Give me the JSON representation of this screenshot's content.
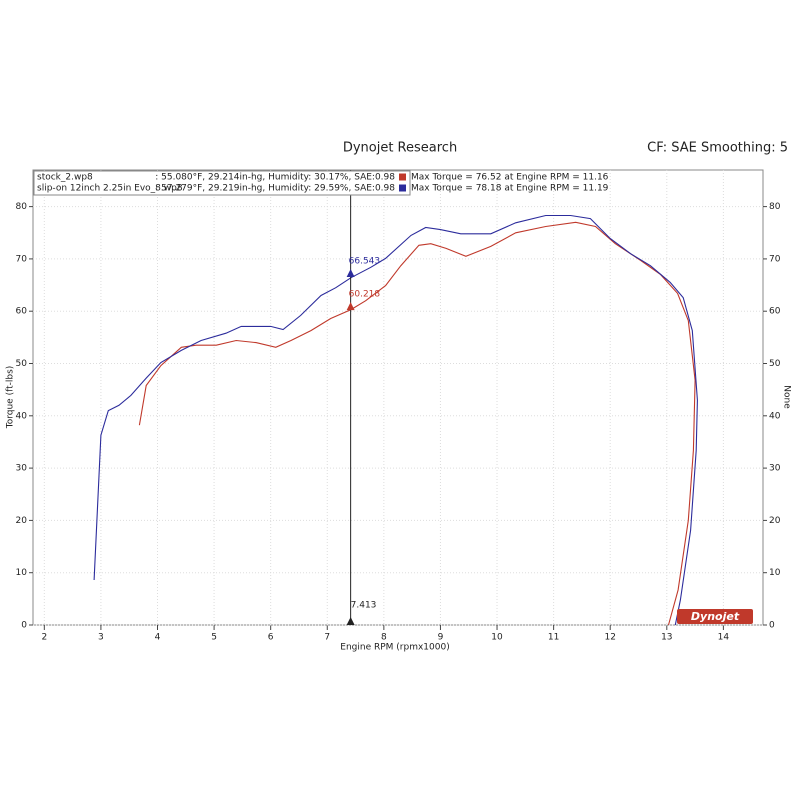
{
  "chart_data": {
    "type": "line",
    "title": "Dynojet Research",
    "subtitle": "CF: SAE Smoothing: 5",
    "x_label": "Engine RPM (rpmx1000)",
    "y_label": "Torque (ft-lbs)",
    "y2_label": "None",
    "xlim": [
      1.8,
      14.7
    ],
    "xticks": [
      2,
      3,
      4,
      5,
      6,
      7,
      8,
      9,
      10,
      11,
      12,
      13,
      14
    ],
    "ylim": [
      0,
      87
    ],
    "yticks": [
      0,
      10,
      20,
      30,
      40,
      50,
      60,
      70,
      80
    ],
    "y2lim": [
      0,
      87
    ],
    "y2ticks": [
      0,
      10,
      20,
      30,
      40,
      50,
      60,
      70,
      80
    ],
    "grid": true,
    "logo": "Dynojet",
    "series": [
      {
        "name": "stock_2.wp8",
        "color": "#c0392b",
        "info": ": 55.080°F, 29.214in-hg, Humidity: 30.17%, SAE:0.98",
        "max_text": "Max Torque = 76.52 at Engine RPM = 11.16",
        "x": [
          3.68,
          3.8,
          4.06,
          4.42,
          4.68,
          5.04,
          5.39,
          5.74,
          6.09,
          6.36,
          6.71,
          7.06,
          7.42,
          7.68,
          8.03,
          8.3,
          8.62,
          8.83,
          9.1,
          9.45,
          9.89,
          10.33,
          10.86,
          11.39,
          11.74,
          12.09,
          12.54,
          12.89,
          13.19,
          13.38,
          13.5,
          13.47,
          13.38,
          13.2,
          13.03
        ],
        "values": [
          38.2,
          45.8,
          49.6,
          53.1,
          53.5,
          53.5,
          54.4,
          54,
          53.1,
          54.4,
          56.3,
          58.6,
          60.3,
          62,
          64.9,
          68.7,
          72.6,
          72.9,
          72,
          70.5,
          72.4,
          75,
          76.2,
          77,
          76.2,
          72.9,
          69.7,
          67,
          63.4,
          58.2,
          46.8,
          33.4,
          20,
          6.7,
          0
        ]
      },
      {
        "name": "slip-on 12inch 2.25in Evo_8.wp8",
        "color": "#2c2c9c",
        "info": ": 57.279°F, 29.219in-hg, Humidity: 29.59%, SAE:0.98",
        "max_text": "Max Torque = 78.18 at Engine RPM = 11.19",
        "x": [
          2.88,
          3.0,
          3.13,
          3.32,
          3.53,
          3.8,
          4.06,
          4.42,
          4.77,
          5.21,
          5.48,
          6.0,
          6.22,
          6.53,
          6.89,
          7.15,
          7.42,
          7.77,
          8.03,
          8.48,
          8.74,
          9.0,
          9.36,
          9.89,
          10.33,
          10.86,
          11.3,
          11.65,
          12.0,
          12.36,
          12.71,
          13.06,
          13.29,
          13.45,
          13.54,
          13.52,
          13.42,
          13.24,
          13.15
        ],
        "values": [
          8.6,
          36.3,
          41,
          42,
          43.9,
          47.2,
          50.2,
          52.5,
          54.4,
          55.8,
          57.1,
          57.1,
          56.5,
          59.2,
          63,
          64.5,
          66.4,
          68.4,
          70.1,
          74.5,
          76,
          75.6,
          74.8,
          74.8,
          76.9,
          78.3,
          78.3,
          77.7,
          73.9,
          71,
          68.7,
          65.5,
          62.6,
          56.3,
          43,
          33.4,
          18.1,
          4.8,
          0
        ]
      }
    ],
    "cursor": {
      "x": 7.413,
      "values": [
        60.218,
        66.543
      ]
    }
  }
}
